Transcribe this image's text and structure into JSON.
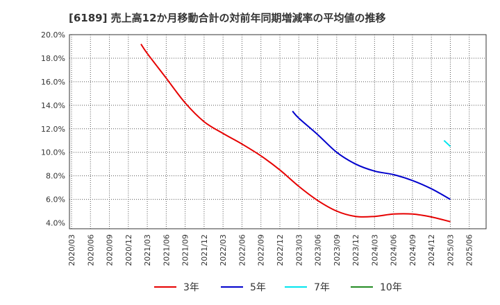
{
  "chart_data": {
    "type": "line",
    "title": "[6189]  売上高12か月移動合計の対前年同期増減率の平均値の推移",
    "xlabel": "",
    "ylabel": "",
    "ylim": [
      3.5,
      20.0
    ],
    "yticks": [
      4.0,
      6.0,
      8.0,
      10.0,
      12.0,
      14.0,
      16.0,
      18.0,
      20.0
    ],
    "ytick_labels": [
      "4.0%",
      "6.0%",
      "8.0%",
      "10.0%",
      "12.0%",
      "14.0%",
      "16.0%",
      "18.0%",
      "20.0%"
    ],
    "x_categories": [
      "2020/03",
      "2020/06",
      "2020/09",
      "2020/12",
      "2021/03",
      "2021/06",
      "2021/09",
      "2021/12",
      "2022/03",
      "2022/06",
      "2022/09",
      "2022/12",
      "2023/03",
      "2023/06",
      "2023/09",
      "2023/12",
      "2024/03",
      "2024/06",
      "2024/09",
      "2024/12",
      "2025/03",
      "2025/06"
    ],
    "grid": true,
    "legend_position": "bottom",
    "series": [
      {
        "name": "3年",
        "color": "#e60000",
        "x": [
          "2021/02",
          "2021/03",
          "2021/06",
          "2021/09",
          "2021/12",
          "2022/03",
          "2022/06",
          "2022/09",
          "2022/12",
          "2023/03",
          "2023/06",
          "2023/09",
          "2023/12",
          "2024/03",
          "2024/06",
          "2024/09",
          "2024/12",
          "2025/03"
        ],
        "values": [
          19.2,
          18.4,
          16.3,
          14.2,
          12.6,
          11.6,
          10.7,
          9.7,
          8.5,
          7.1,
          5.9,
          5.0,
          4.55,
          4.55,
          4.75,
          4.75,
          4.5,
          4.1
        ]
      },
      {
        "name": "5年",
        "color": "#0000cc",
        "x": [
          "2023/02",
          "2023/03",
          "2023/06",
          "2023/09",
          "2023/12",
          "2024/03",
          "2024/06",
          "2024/09",
          "2024/12",
          "2025/03"
        ],
        "values": [
          13.5,
          12.9,
          11.5,
          10.0,
          9.0,
          8.4,
          8.1,
          7.6,
          6.9,
          6.0
        ]
      },
      {
        "name": "7年",
        "color": "#00e5ee",
        "x": [
          "2025/02",
          "2025/03"
        ],
        "values": [
          11.0,
          10.5
        ]
      },
      {
        "name": "10年",
        "color": "#228b22",
        "x": [],
        "values": []
      }
    ]
  }
}
